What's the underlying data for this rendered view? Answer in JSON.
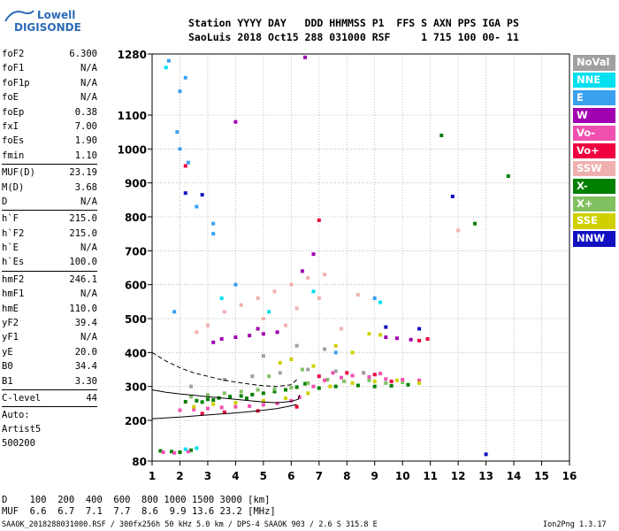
{
  "logo": {
    "line1": "Lowell",
    "line2": "DIGISONDE"
  },
  "header": {
    "row1": "Station YYYY DAY   DDD HHMMSS P1  FFS S AXN PPS IGA PS",
    "row2": "SaoLuis 2018 Oct15 288 031000 RSF     1 715 100 00- 11"
  },
  "params": [
    {
      "group": 1,
      "name": "foF2",
      "value": "6.300"
    },
    {
      "group": 1,
      "name": "foF1",
      "value": "N/A"
    },
    {
      "group": 1,
      "name": "foF1p",
      "value": "N/A"
    },
    {
      "group": 1,
      "name": "foE",
      "value": "N/A"
    },
    {
      "group": 1,
      "name": "foEp",
      "value": "0.38"
    },
    {
      "group": 1,
      "name": "fxI",
      "value": "7.00"
    },
    {
      "group": 1,
      "name": "foEs",
      "value": "1.90"
    },
    {
      "group": 1,
      "name": "fmin",
      "value": "1.10"
    },
    {
      "group": 2,
      "name": "MUF(D)",
      "value": "23.19"
    },
    {
      "group": 2,
      "name": "M(D)",
      "value": "3.68"
    },
    {
      "group": 2,
      "name": "D",
      "value": "N/A"
    },
    {
      "group": 3,
      "name": "h`F",
      "value": "215.0"
    },
    {
      "group": 3,
      "name": "h`F2",
      "value": "215.0"
    },
    {
      "group": 3,
      "name": "h`E",
      "value": "N/A"
    },
    {
      "group": 3,
      "name": "h`Es",
      "value": "100.0"
    },
    {
      "group": 4,
      "name": "hmF2",
      "value": "246.1"
    },
    {
      "group": 4,
      "name": "hmF1",
      "value": "N/A"
    },
    {
      "group": 4,
      "name": "hmE",
      "value": "110.0"
    },
    {
      "group": 4,
      "name": "yF2",
      "value": "39.4"
    },
    {
      "group": 4,
      "name": "yF1",
      "value": "N/A"
    },
    {
      "group": 4,
      "name": "yE",
      "value": "20.0"
    },
    {
      "group": 4,
      "name": "B0",
      "value": "34.4"
    },
    {
      "group": 4,
      "name": "B1",
      "value": "3.30"
    },
    {
      "group": 5,
      "name": "C-level",
      "value": "44"
    }
  ],
  "auto": {
    "label": "Auto:",
    "artist": "Artist5",
    "version": "500200"
  },
  "legend": [
    {
      "label": "NoVal",
      "color": "#a0a0a0"
    },
    {
      "label": "NNE",
      "color": "#00e0f0"
    },
    {
      "label": "E",
      "color": "#3aa0f0"
    },
    {
      "label": "W",
      "color": "#a000b0"
    },
    {
      "label": "Vo-",
      "color": "#f050b0"
    },
    {
      "label": "Vo+",
      "color": "#f00040"
    },
    {
      "label": "SSW",
      "color": "#f0b0b0"
    },
    {
      "label": "X-",
      "color": "#008000"
    },
    {
      "label": "X+",
      "color": "#80c060"
    },
    {
      "label": "SSE",
      "color": "#d0d000"
    },
    {
      "label": "NNW",
      "color": "#1010c0"
    }
  ],
  "mufTable": {
    "dRow": "D    100  200  400  600  800 1000 1500 3000 [km]",
    "mufRow": "MUF  6.6  6.7  7.1  7.7  8.6  9.9 13.6 23.2 [MHz]"
  },
  "footer": {
    "left": "SAAOK_2018288031000.RSF / 300fx256h 50 kHz 5.0 km / DPS-4 SAAOK 903 / 2.6 S 315.8 E",
    "right": "Ion2Png 1.3.17"
  },
  "chart_data": {
    "type": "scatter",
    "xlim": [
      1,
      16
    ],
    "ylim": [
      80,
      1280
    ],
    "xticks": [
      1,
      2,
      3,
      4,
      5,
      6,
      7,
      8,
      9,
      10,
      11,
      12,
      13,
      14,
      15,
      16
    ],
    "yticks": [
      80,
      200,
      300,
      400,
      500,
      600,
      700,
      800,
      900,
      1000,
      1100,
      1280
    ],
    "grid": true,
    "series": [
      {
        "name": "X-",
        "color": "#008000",
        "points": [
          [
            2.2,
            255
          ],
          [
            2.6,
            258
          ],
          [
            3.0,
            262
          ],
          [
            3.4,
            266
          ],
          [
            3.8,
            270
          ],
          [
            4.2,
            272
          ],
          [
            4.6,
            276
          ],
          [
            5.0,
            280
          ],
          [
            5.4,
            285
          ],
          [
            5.8,
            290
          ],
          [
            6.2,
            298
          ],
          [
            6.5,
            308
          ],
          [
            7.0,
            295
          ],
          [
            7.6,
            300
          ],
          [
            8.4,
            303
          ],
          [
            9.0,
            300
          ],
          [
            9.6,
            302
          ],
          [
            10.2,
            305
          ],
          [
            1.3,
            110
          ],
          [
            1.7,
            108
          ],
          [
            2.0,
            106
          ],
          [
            2.4,
            112
          ],
          [
            2.8,
            254
          ],
          [
            3.2,
            260
          ],
          [
            4.4,
            265
          ],
          [
            11.4,
            1040
          ],
          [
            12.6,
            780
          ],
          [
            13.8,
            920
          ]
        ]
      },
      {
        "name": "X+",
        "color": "#80c060",
        "points": [
          [
            2.4,
            270
          ],
          [
            3.0,
            275
          ],
          [
            3.6,
            280
          ],
          [
            4.2,
            285
          ],
          [
            4.8,
            290
          ],
          [
            5.4,
            292
          ],
          [
            6.0,
            296
          ],
          [
            6.6,
            310
          ],
          [
            7.3,
            320
          ],
          [
            7.9,
            315
          ],
          [
            8.8,
            318
          ],
          [
            9.4,
            310
          ],
          [
            10.0,
            312
          ],
          [
            10.6,
            316
          ],
          [
            5.2,
            330
          ],
          [
            6.4,
            350
          ]
        ]
      },
      {
        "name": "Vo-",
        "color": "#f050b0",
        "points": [
          [
            2.0,
            230
          ],
          [
            2.5,
            232
          ],
          [
            3.0,
            235
          ],
          [
            3.5,
            238
          ],
          [
            4.0,
            240
          ],
          [
            4.5,
            242
          ],
          [
            5.0,
            246
          ],
          [
            5.5,
            250
          ],
          [
            6.0,
            258
          ],
          [
            6.3,
            268
          ],
          [
            6.8,
            300
          ],
          [
            7.2,
            318
          ],
          [
            7.8,
            326
          ],
          [
            8.2,
            332
          ],
          [
            8.8,
            328
          ],
          [
            9.4,
            322
          ],
          [
            10.0,
            320
          ],
          [
            10.6,
            318
          ],
          [
            7.5,
            340
          ],
          [
            8.6,
            340
          ],
          [
            9.2,
            338
          ],
          [
            1.4,
            106
          ],
          [
            1.8,
            104
          ],
          [
            2.3,
            108
          ]
        ]
      },
      {
        "name": "Vo+",
        "color": "#f00040",
        "points": [
          [
            2.8,
            220
          ],
          [
            3.6,
            224
          ],
          [
            4.8,
            228
          ],
          [
            6.2,
            240
          ],
          [
            7.0,
            330
          ],
          [
            8.0,
            340
          ],
          [
            9.0,
            335
          ],
          [
            9.6,
            315
          ],
          [
            10.6,
            435
          ],
          [
            10.9,
            440
          ],
          [
            7.0,
            790
          ],
          [
            2.2,
            950
          ]
        ]
      },
      {
        "name": "W",
        "color": "#a000b0",
        "points": [
          [
            3.5,
            440
          ],
          [
            4.0,
            445
          ],
          [
            4.5,
            450
          ],
          [
            5.0,
            455
          ],
          [
            5.5,
            460
          ],
          [
            3.2,
            430
          ],
          [
            4.8,
            470
          ],
          [
            9.4,
            445
          ],
          [
            9.8,
            442
          ],
          [
            10.3,
            438
          ],
          [
            6.4,
            640
          ],
          [
            6.8,
            690
          ],
          [
            4.0,
            1080
          ],
          [
            6.5,
            1270
          ]
        ]
      },
      {
        "name": "SSE",
        "color": "#d0d000",
        "points": [
          [
            2.5,
            240
          ],
          [
            3.2,
            248
          ],
          [
            4.0,
            252
          ],
          [
            5.0,
            258
          ],
          [
            5.8,
            265
          ],
          [
            6.6,
            280
          ],
          [
            7.4,
            300
          ],
          [
            8.2,
            310
          ],
          [
            9.0,
            315
          ],
          [
            9.8,
            318
          ],
          [
            10.6,
            310
          ],
          [
            8.8,
            455
          ],
          [
            9.2,
            452
          ],
          [
            7.6,
            420
          ],
          [
            8.2,
            400
          ],
          [
            6.0,
            380
          ],
          [
            6.8,
            360
          ],
          [
            5.6,
            370
          ]
        ]
      },
      {
        "name": "NNE",
        "color": "#00e0f0",
        "points": [
          [
            2.2,
            115
          ],
          [
            2.6,
            118
          ],
          [
            1.5,
            1240
          ],
          [
            9.2,
            548
          ],
          [
            6.8,
            580
          ],
          [
            3.5,
            560
          ],
          [
            5.2,
            520
          ]
        ]
      },
      {
        "name": "E",
        "color": "#3aa0f0",
        "points": [
          [
            1.6,
            1260
          ],
          [
            2.0,
            1170
          ],
          [
            2.2,
            1210
          ],
          [
            1.9,
            1050
          ],
          [
            2.0,
            1000
          ],
          [
            2.3,
            960
          ],
          [
            2.6,
            830
          ],
          [
            3.2,
            780
          ],
          [
            3.2,
            750
          ],
          [
            1.8,
            520
          ],
          [
            7.6,
            400
          ],
          [
            4.0,
            600
          ],
          [
            9.0,
            560
          ]
        ]
      },
      {
        "name": "SSW",
        "color": "#f0b0b0",
        "points": [
          [
            3.6,
            520
          ],
          [
            4.2,
            540
          ],
          [
            4.8,
            560
          ],
          [
            5.4,
            580
          ],
          [
            6.0,
            600
          ],
          [
            6.6,
            620
          ],
          [
            7.2,
            630
          ],
          [
            3.0,
            480
          ],
          [
            2.6,
            460
          ],
          [
            5.0,
            500
          ],
          [
            5.8,
            480
          ],
          [
            7.0,
            560
          ],
          [
            6.2,
            530
          ],
          [
            8.4,
            570
          ],
          [
            12.0,
            760
          ],
          [
            7.8,
            470
          ]
        ]
      },
      {
        "name": "NNW",
        "color": "#1010c0",
        "points": [
          [
            2.2,
            870
          ],
          [
            2.8,
            865
          ],
          [
            11.8,
            860
          ],
          [
            9.4,
            475
          ],
          [
            13.0,
            100
          ],
          [
            10.6,
            470
          ]
        ]
      },
      {
        "name": "NoVal",
        "color": "#a0a0a0",
        "points": [
          [
            2.4,
            300
          ],
          [
            3.6,
            320
          ],
          [
            4.6,
            330
          ],
          [
            5.6,
            340
          ],
          [
            6.6,
            350
          ],
          [
            7.6,
            345
          ],
          [
            8.6,
            340
          ],
          [
            5.0,
            390
          ],
          [
            6.2,
            420
          ],
          [
            7.2,
            410
          ]
        ]
      }
    ],
    "traces": [
      {
        "name": "o-trace",
        "style": "solid",
        "points": [
          [
            1.0,
            205
          ],
          [
            2.0,
            210
          ],
          [
            3.0,
            216
          ],
          [
            4.0,
            222
          ],
          [
            4.8,
            228
          ],
          [
            5.5,
            235
          ],
          [
            6.0,
            243
          ],
          [
            6.2,
            247
          ]
        ]
      },
      {
        "name": "virtual-dashed",
        "style": "dashed",
        "points": [
          [
            1.0,
            400
          ],
          [
            1.5,
            375
          ],
          [
            2.0,
            355
          ],
          [
            2.5,
            340
          ],
          [
            3.0,
            330
          ],
          [
            3.5,
            320
          ],
          [
            4.0,
            313
          ],
          [
            4.5,
            307
          ],
          [
            5.0,
            302
          ],
          [
            5.5,
            300
          ],
          [
            6.0,
            305
          ],
          [
            6.2,
            320
          ]
        ]
      },
      {
        "name": "profile",
        "style": "solid",
        "points": [
          [
            1.0,
            290
          ],
          [
            1.5,
            283
          ],
          [
            2.0,
            278
          ],
          [
            2.5,
            274
          ],
          [
            3.0,
            270
          ],
          [
            3.5,
            266
          ],
          [
            4.0,
            262
          ],
          [
            4.5,
            258
          ],
          [
            5.0,
            254
          ],
          [
            5.5,
            252
          ],
          [
            6.0,
            256
          ],
          [
            6.25,
            262
          ],
          [
            6.3,
            275
          ]
        ]
      }
    ]
  }
}
